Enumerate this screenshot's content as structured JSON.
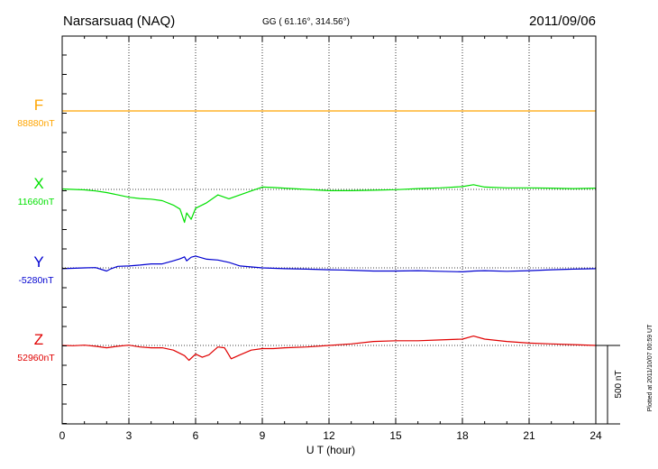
{
  "header": {
    "station": "Narsarsuaq (NAQ)",
    "coords": "GG ( 61.16°, 314.56°)",
    "date": "2011/09/06"
  },
  "footer": {
    "plotted": "Plotted at 2011/10/07 00:59 UT"
  },
  "scale_bar": {
    "label": "500 nT",
    "value_nT": 500
  },
  "colors": {
    "F": "#ffa500",
    "X": "#00e000",
    "Y": "#0000d0",
    "Z": "#e00000",
    "axis": "#000000"
  },
  "chart_data": {
    "type": "line",
    "xlabel": "U T (hour)",
    "xlim": [
      0,
      24
    ],
    "x_ticks": [
      "0",
      "3",
      "6",
      "9",
      "12",
      "15",
      "18",
      "21",
      "24"
    ],
    "grid": true,
    "y_units": "nT",
    "series": [
      {
        "name": "F",
        "baseline_label": "88880nT",
        "baseline_nT": 88880,
        "x": [
          0,
          24
        ],
        "values": [
          88880,
          88880
        ]
      },
      {
        "name": "X",
        "baseline_label": "11660nT",
        "baseline_nT": 11660,
        "x": [
          0,
          0.5,
          1,
          1.5,
          2,
          2.5,
          3,
          3.5,
          4,
          4.5,
          5,
          5.3,
          5.5,
          5.6,
          5.8,
          6,
          6.5,
          7,
          7.5,
          8,
          8.5,
          9,
          9.5,
          10,
          11,
          12,
          13,
          14,
          15,
          16,
          17,
          18,
          18.5,
          19,
          20,
          21,
          22,
          23,
          24
        ],
        "values": [
          11663,
          11660,
          11657,
          11650,
          11640,
          11625,
          11610,
          11602,
          11598,
          11588,
          11560,
          11535,
          11450,
          11510,
          11470,
          11540,
          11575,
          11625,
          11600,
          11625,
          11650,
          11675,
          11672,
          11668,
          11660,
          11652,
          11652,
          11655,
          11658,
          11665,
          11670,
          11678,
          11690,
          11675,
          11670,
          11670,
          11668,
          11665,
          11668
        ]
      },
      {
        "name": "Y",
        "baseline_label": "-5280nT",
        "baseline_nT": -5280,
        "x": [
          0,
          1,
          1.5,
          2,
          2.2,
          2.5,
          3,
          3.5,
          4,
          4.5,
          5,
          5.3,
          5.5,
          5.6,
          5.8,
          6,
          6.5,
          7,
          7.5,
          8,
          9,
          10,
          11,
          12,
          13,
          14,
          15,
          16,
          17,
          18,
          18.5,
          19,
          20,
          21,
          22,
          23,
          24
        ],
        "values": [
          -5285,
          -5280,
          -5278,
          -5300,
          -5285,
          -5270,
          -5268,
          -5262,
          -5255,
          -5255,
          -5235,
          -5222,
          -5210,
          -5235,
          -5212,
          -5205,
          -5225,
          -5230,
          -5245,
          -5268,
          -5280,
          -5285,
          -5288,
          -5292,
          -5295,
          -5300,
          -5300,
          -5298,
          -5302,
          -5305,
          -5300,
          -5298,
          -5302,
          -5298,
          -5292,
          -5288,
          -5285
        ]
      },
      {
        "name": "Z",
        "baseline_label": "52960nT",
        "baseline_nT": 52960,
        "x": [
          0,
          0.5,
          1,
          1.5,
          2,
          2.5,
          3,
          3.5,
          4,
          4.5,
          5,
          5.5,
          5.7,
          6,
          6.3,
          6.6,
          7,
          7.3,
          7.6,
          8,
          8.5,
          9,
          9.5,
          10,
          11,
          12,
          13,
          14,
          15,
          16,
          17,
          18,
          18.5,
          19,
          20,
          21,
          22,
          23,
          24
        ],
        "values": [
          52960,
          52958,
          52962,
          52955,
          52945,
          52955,
          52962,
          52950,
          52945,
          52945,
          52930,
          52895,
          52865,
          52905,
          52885,
          52900,
          52950,
          52945,
          52875,
          52900,
          52930,
          52940,
          52940,
          52945,
          52950,
          52960,
          52970,
          52985,
          52990,
          52990,
          52995,
          53000,
          53020,
          53000,
          52985,
          52975,
          52970,
          52965,
          52960
        ]
      }
    ]
  }
}
